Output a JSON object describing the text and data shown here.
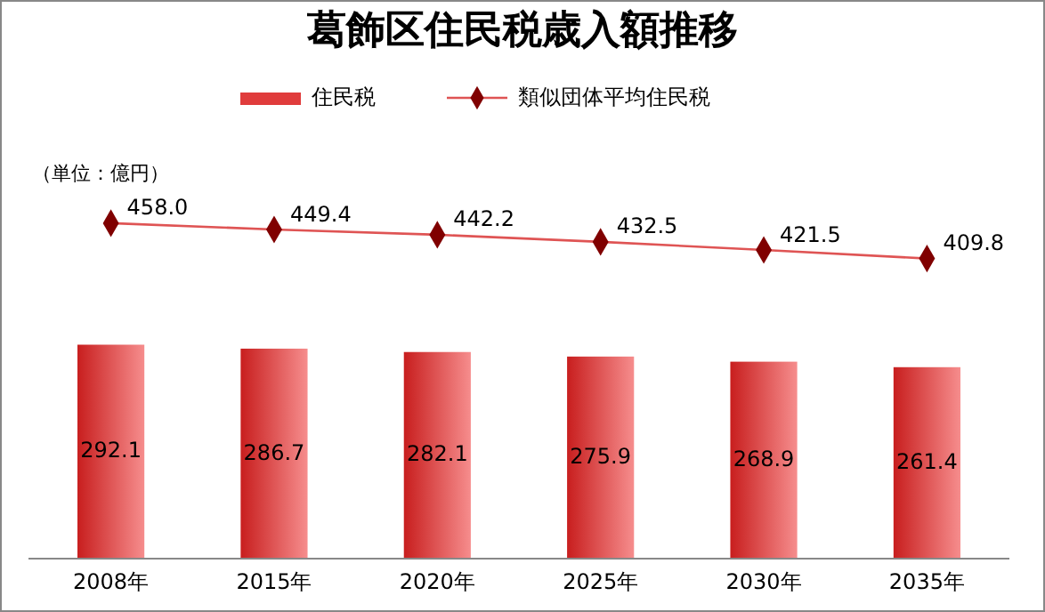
{
  "chart_data": {
    "type": "bar",
    "title": "葛飾区住民税歳入額推移",
    "annotations": [
      "（単位：億円）"
    ],
    "categories": [
      "2008年",
      "2015年",
      "2020年",
      "2025年",
      "2030年",
      "2035年"
    ],
    "series": [
      {
        "name": "住民税",
        "color": "#e03c3c",
        "values": [
          292.1,
          286.7,
          282.1,
          275.9,
          268.9,
          261.4
        ],
        "value_labels": [
          "292.1",
          "286.7",
          "282.1",
          "275.9",
          "268.9",
          "261.4"
        ]
      },
      {
        "name": "類似団体平均住民税",
        "type": "line",
        "color": "#800000",
        "values": [
          458.0,
          449.4,
          442.2,
          432.5,
          421.5,
          409.8
        ],
        "value_labels": [
          "458.0",
          "449.4",
          "442.2",
          "432.5",
          "421.5",
          "409.8"
        ]
      }
    ],
    "legend": "top",
    "marker": "diamond",
    "tick_labels": "x"
  }
}
